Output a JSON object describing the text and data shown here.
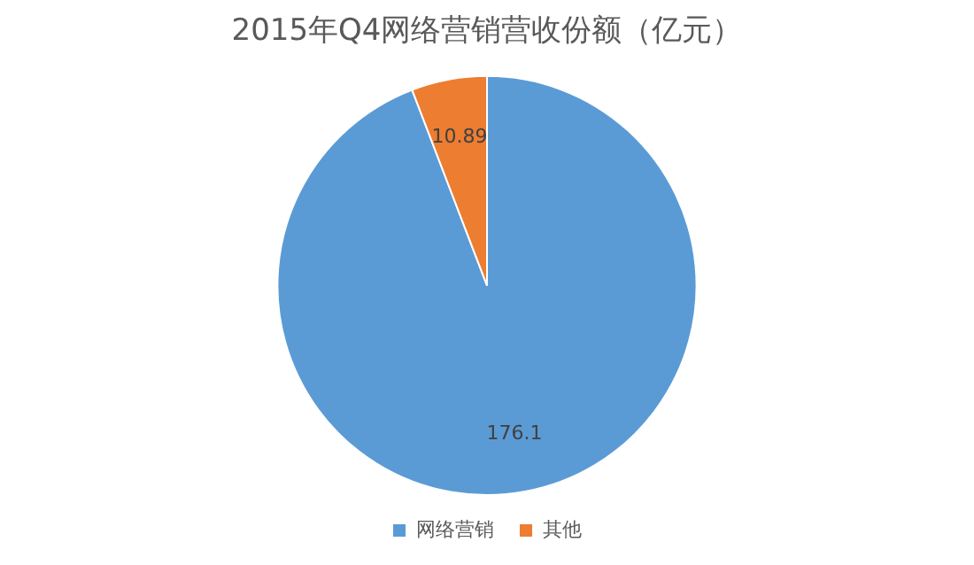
{
  "chart_data": {
    "type": "pie",
    "title": "2015年Q4网络营销营收份额（亿元）",
    "categories": [
      "网络营销",
      "其他"
    ],
    "values": [
      176.1,
      10.89
    ],
    "colors": [
      "#5b9bd5",
      "#ed7d31"
    ],
    "data_labels": true,
    "legend": "bottom"
  }
}
